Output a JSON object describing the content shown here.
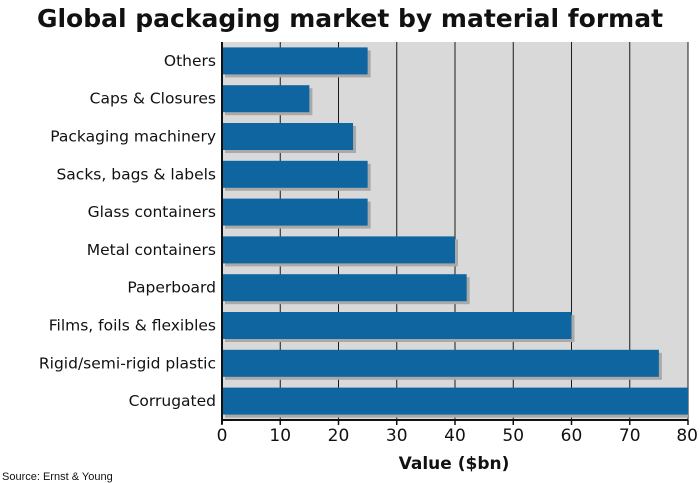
{
  "chart_data": {
    "type": "bar",
    "orientation": "horizontal",
    "title": "Global packaging market by material format",
    "xlabel": "Value ($bn)",
    "ylabel": "",
    "xlim": [
      0,
      80
    ],
    "xticks": [
      "0",
      "10",
      "20",
      "30",
      "40",
      "50",
      "60",
      "70",
      "80"
    ],
    "grid": true,
    "categories": [
      "Others",
      "Caps & Closures",
      "Packaging machinery",
      "Sacks, bags & labels",
      "Glass containers",
      "Metal containers",
      "Paperboard",
      "Films, foils & flexibles",
      "Rigid/semi-rigid plastic",
      "Corrugated"
    ],
    "values": [
      25,
      15,
      22.5,
      25,
      25,
      40,
      42,
      60,
      75,
      80
    ],
    "source": "Source: Ernst & Young"
  },
  "colors": {
    "bar": "#0f659f",
    "bar_shadow": "#a9a9a9",
    "plot_background": "#d9d9d9",
    "grid": "#1a1a1a",
    "axis": "#111111"
  }
}
